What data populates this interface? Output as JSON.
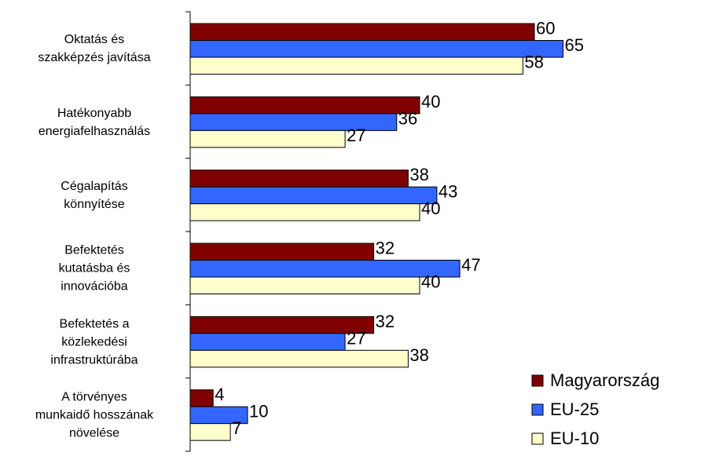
{
  "chart_data": {
    "type": "hbar",
    "categories": [
      "Oktatás és\nszakképzés javítása",
      "Hatékonyabb\nenergiafelhasználás",
      "Cégalapítás\nkönnyítése",
      "Befektetés\nkutatásba és\ninnovációba",
      "Befektetés a\nközlekedési\ninfrastruktúrába",
      "A törvényes\nmunkaidő hosszának\nnövelése"
    ],
    "series": [
      {
        "name": "Magyarország",
        "color": "#800000",
        "values": [
          60,
          40,
          38,
          32,
          32,
          4
        ]
      },
      {
        "name": "EU-25",
        "color": "#3366ff",
        "values": [
          65,
          36,
          43,
          47,
          27,
          10
        ]
      },
      {
        "name": "EU-10",
        "color": "#ffffcc",
        "values": [
          58,
          27,
          40,
          40,
          38,
          7
        ]
      }
    ],
    "xlim": [
      0,
      100
    ],
    "legend": "bottom-right"
  }
}
